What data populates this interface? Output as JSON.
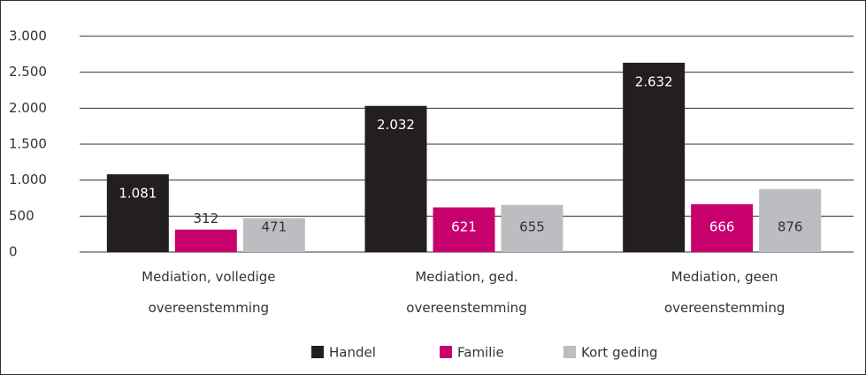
{
  "chart_data": {
    "type": "bar",
    "categories": [
      "Mediation, volledige overeenstemming",
      "Mediation, ged. overeenstemming",
      "Mediation, geen overeenstemming"
    ],
    "series": [
      {
        "name": "Handel",
        "color": "#231f20",
        "values": [
          1081,
          2032,
          2632
        ],
        "value_labels": [
          "1.081",
          "2.032",
          "2.632"
        ]
      },
      {
        "name": "Familie",
        "color": "#c8006e",
        "values": [
          312,
          621,
          666
        ]
      },
      {
        "name": "Kort geding",
        "color": "#bcbdc0",
        "values": [
          471,
          655,
          876
        ]
      }
    ],
    "ylim": [
      0,
      3000
    ],
    "yticks": [
      0,
      500,
      {
        "value": 1000,
        "label": "1.000"
      },
      {
        "value": 1500,
        "label": "1.500"
      },
      {
        "value": 2000,
        "label": "2.000"
      },
      {
        "value": 2500,
        "label": "2.500"
      },
      {
        "value": 3000,
        "label": "3.000"
      }
    ],
    "grid": true,
    "legend": "bottom"
  }
}
